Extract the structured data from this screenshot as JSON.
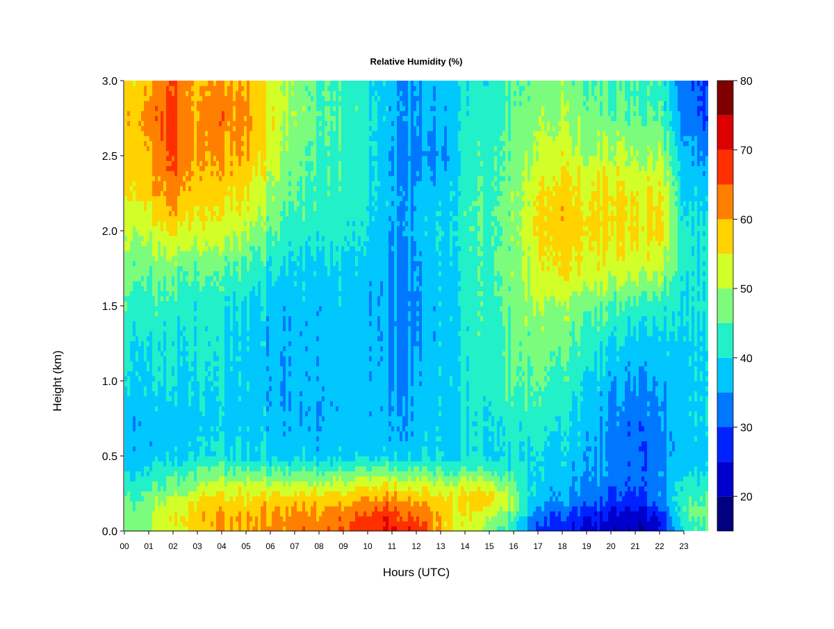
{
  "chart_data": {
    "type": "heatmap",
    "title": "Relative Humidity (%)",
    "xlabel": "Hours (UTC)",
    "ylabel": "Height (km)",
    "xlim": [
      0,
      24
    ],
    "ylim": [
      0,
      3.0
    ],
    "x_tick_labels": [
      "00",
      "01",
      "02",
      "03",
      "04",
      "05",
      "06",
      "07",
      "08",
      "09",
      "10",
      "11",
      "12",
      "13",
      "14",
      "15",
      "16",
      "17",
      "18",
      "19",
      "20",
      "21",
      "22",
      "23"
    ],
    "y_tick_values": [
      0,
      0.5,
      1.0,
      1.5,
      2.0,
      2.5,
      3.0
    ],
    "y_tick_labels": [
      "0.0",
      "0.5",
      "1.0",
      "1.5",
      "2.0",
      "2.5",
      "3.0"
    ],
    "legend_placement": "right",
    "colorbar": {
      "bounds": [
        15,
        20,
        25,
        30,
        35,
        40,
        45,
        50,
        55,
        60,
        65,
        70,
        75,
        80
      ],
      "tick_values": [
        20,
        30,
        40,
        50,
        60,
        70,
        80
      ],
      "tick_labels": [
        "20",
        "30",
        "40",
        "50",
        "60",
        "70",
        "80"
      ],
      "colors": [
        "#000080",
        "#0000cd",
        "#0022ff",
        "#0077ff",
        "#00c8ff",
        "#22f0c8",
        "#7cfc7c",
        "#d2ff28",
        "#ffd200",
        "#ff8000",
        "#ff3000",
        "#dc0000",
        "#800000"
      ]
    },
    "heights_km": [
      0.0,
      0.1,
      0.2,
      0.3,
      0.4,
      0.5,
      0.75,
      1.0,
      1.25,
      1.5,
      1.75,
      2.0,
      2.25,
      2.5,
      2.75,
      3.0
    ],
    "hours_utc": [
      0,
      1,
      2,
      3,
      4,
      5,
      6,
      7,
      8,
      9,
      10,
      11,
      12,
      13,
      14,
      15,
      16,
      17,
      18,
      19,
      20,
      21,
      22,
      23,
      24
    ],
    "rh_by_height": [
      [
        47,
        50,
        53,
        57,
        59,
        60,
        62,
        63,
        64,
        65,
        67,
        71,
        68,
        58,
        53,
        48,
        40,
        28,
        26,
        24,
        22,
        20,
        22,
        42,
        45
      ],
      [
        45,
        50,
        55,
        58,
        60,
        60,
        61,
        62,
        62,
        63,
        65,
        68,
        65,
        58,
        54,
        52,
        45,
        32,
        29,
        26,
        24,
        22,
        25,
        45,
        48
      ],
      [
        45,
        48,
        52,
        55,
        57,
        57,
        58,
        58,
        58,
        58,
        60,
        63,
        60,
        57,
        57,
        58,
        50,
        36,
        34,
        32,
        30,
        28,
        32,
        45,
        46
      ],
      [
        42,
        44,
        47,
        50,
        52,
        52,
        52,
        52,
        52,
        52,
        53,
        55,
        53,
        52,
        52,
        54,
        46,
        38,
        36,
        34,
        32,
        30,
        33,
        43,
        43
      ],
      [
        40,
        41,
        43,
        45,
        46,
        46,
        45,
        45,
        45,
        45,
        46,
        47,
        46,
        45,
        45,
        45,
        42,
        40,
        38,
        36,
        34,
        31,
        33,
        40,
        40
      ],
      [
        37,
        38,
        39,
        40,
        40,
        40,
        39,
        38,
        38,
        38,
        38,
        38,
        38,
        39,
        40,
        40,
        40,
        40,
        38,
        36,
        33,
        30,
        32,
        38,
        38
      ],
      [
        36,
        37,
        38,
        38,
        38,
        38,
        37,
        36,
        36,
        36,
        36,
        36,
        37,
        38,
        40,
        41,
        42,
        43,
        40,
        38,
        34,
        31,
        33,
        39,
        40
      ],
      [
        40,
        40,
        40,
        40,
        39,
        38,
        37,
        36,
        37,
        37,
        36,
        35,
        36,
        38,
        41,
        43,
        45,
        46,
        43,
        40,
        37,
        34,
        35,
        39,
        40
      ],
      [
        41,
        41,
        41,
        41,
        40,
        39,
        37,
        36,
        37,
        37,
        36,
        34,
        35,
        38,
        41,
        43,
        46,
        48,
        46,
        43,
        40,
        38,
        38,
        40,
        40
      ],
      [
        44,
        44,
        43,
        42,
        41,
        40,
        38,
        37,
        37,
        37,
        36,
        34,
        34,
        38,
        42,
        44,
        47,
        50,
        49,
        47,
        45,
        43,
        42,
        41,
        41
      ],
      [
        47,
        47,
        47,
        46,
        45,
        44,
        41,
        39,
        39,
        39,
        37,
        35,
        35,
        38,
        42,
        45,
        48,
        54,
        55,
        54,
        53,
        52,
        51,
        42,
        41
      ],
      [
        51,
        52,
        56,
        53,
        52,
        51,
        46,
        42,
        42,
        41,
        39,
        36,
        36,
        39,
        43,
        45,
        48,
        56,
        58,
        56,
        57,
        55,
        56,
        42,
        41
      ],
      [
        55,
        58,
        63,
        57,
        57,
        56,
        50,
        45,
        44,
        42,
        40,
        37,
        36,
        38,
        43,
        45,
        48,
        55,
        57,
        55,
        57,
        54,
        55,
        40,
        38
      ],
      [
        56,
        60,
        66,
        60,
        60,
        60,
        53,
        47,
        45,
        43,
        41,
        35,
        33,
        34,
        42,
        44,
        47,
        51,
        53,
        50,
        52,
        49,
        50,
        38,
        35
      ],
      [
        58,
        62,
        68,
        60,
        63,
        62,
        55,
        49,
        46,
        44,
        41,
        37,
        35,
        36,
        42,
        43,
        46,
        49,
        49,
        47,
        47,
        45,
        45,
        34,
        30
      ],
      [
        56,
        60,
        65,
        58,
        61,
        60,
        54,
        48,
        45,
        43,
        40,
        37,
        35,
        38,
        41,
        42,
        44,
        47,
        48,
        45,
        45,
        43,
        43,
        32,
        30
      ]
    ]
  }
}
